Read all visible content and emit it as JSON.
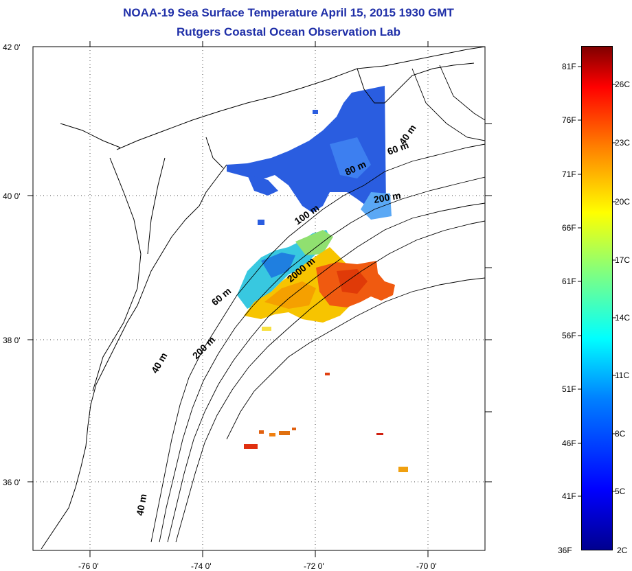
{
  "title_line1": "NOAA-19 Sea Surface Temperature April 15, 2015 1930 GMT",
  "title_line2": "Rutgers Coastal Ocean Observation Lab",
  "lat_ticks": [
    {
      "value": 42,
      "label": "42 0'"
    },
    {
      "value": 40,
      "label": "40 0'"
    },
    {
      "value": 38,
      "label": "38 0'"
    },
    {
      "value": 36,
      "label": "36 0'"
    }
  ],
  "lon_ticks": [
    {
      "value": -76,
      "label": "-76 0'"
    },
    {
      "value": -74,
      "label": "-74 0'"
    },
    {
      "value": -72,
      "label": "-72 0'"
    },
    {
      "value": -70,
      "label": "-70 0'"
    }
  ],
  "map_extent": {
    "lon": [
      -77.0,
      -69.0
    ],
    "lat": [
      35.0,
      42.0
    ]
  },
  "isobath_labels": [
    "40 m",
    "60 m",
    "80 m",
    "100 m",
    "200 m",
    "2000 m",
    "60 m",
    "40 m",
    "200 m",
    "40 m"
  ],
  "colorbar": {
    "range_c": [
      2,
      28
    ],
    "fahrenheit_labels": [
      "81F",
      "76F",
      "71F",
      "66F",
      "61F",
      "56F",
      "51F",
      "46F",
      "41F",
      "36F"
    ],
    "celsius_labels": [
      "26C",
      "23C",
      "20C",
      "17C",
      "14C",
      "11C",
      "8C",
      "5C",
      "2C"
    ],
    "colors": [
      "#00008f",
      "#0000ff",
      "#0080ff",
      "#00ffff",
      "#80ff80",
      "#ffff00",
      "#ff8000",
      "#ff0000",
      "#800000"
    ]
  }
}
